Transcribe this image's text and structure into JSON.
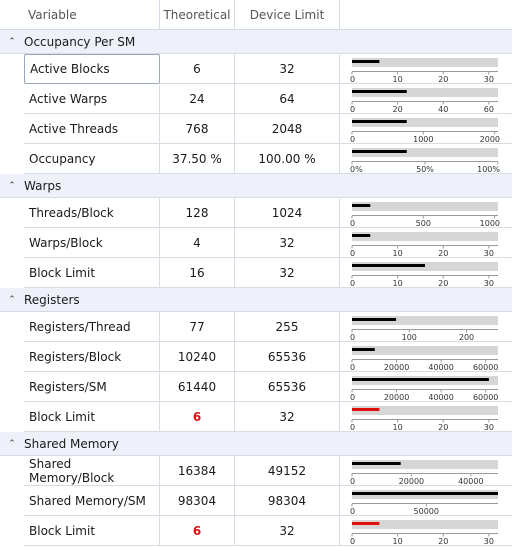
{
  "header": {
    "col_variable": "Variable",
    "col_theoretical": "Theoretical",
    "col_device_limit": "Device Limit"
  },
  "colors": {
    "bar_fill": "#000000",
    "bar_bg": "#d6d6d6",
    "bar_limit": "#e01010",
    "group_bg": "#eef1fa",
    "warn_text": "#e01010"
  },
  "groups": [
    {
      "title": "Occupancy Per SM",
      "rows": [
        {
          "label": "Active Blocks",
          "theoretical": "6",
          "limit": "32",
          "value": 6,
          "max": 32,
          "ticks": [
            "0",
            "10",
            "20",
            "30"
          ],
          "tick_values": [
            0,
            10,
            20,
            30
          ],
          "red": false
        },
        {
          "label": "Active Warps",
          "theoretical": "24",
          "limit": "64",
          "value": 24,
          "max": 64,
          "ticks": [
            "0",
            "20",
            "40",
            "60"
          ],
          "tick_values": [
            0,
            20,
            40,
            60
          ],
          "red": false
        },
        {
          "label": "Active Threads",
          "theoretical": "768",
          "limit": "2048",
          "value": 768,
          "max": 2048,
          "ticks": [
            "0",
            "1000",
            "2000"
          ],
          "tick_values": [
            0,
            1000,
            2000
          ],
          "red": false
        },
        {
          "label": "Occupancy",
          "theoretical": "37.50 %",
          "limit": "100.00 %",
          "value": 37.5,
          "max": 100,
          "ticks": [
            "0%",
            "50%",
            "100%"
          ],
          "tick_values": [
            0,
            50,
            100
          ],
          "red": false
        }
      ]
    },
    {
      "title": "Warps",
      "rows": [
        {
          "label": "Threads/Block",
          "theoretical": "128",
          "limit": "1024",
          "value": 128,
          "max": 1024,
          "ticks": [
            "0",
            "500",
            "1000"
          ],
          "tick_values": [
            0,
            500,
            1000
          ],
          "red": false
        },
        {
          "label": "Warps/Block",
          "theoretical": "4",
          "limit": "32",
          "value": 4,
          "max": 32,
          "ticks": [
            "0",
            "10",
            "20",
            "30"
          ],
          "tick_values": [
            0,
            10,
            20,
            30
          ],
          "red": false
        },
        {
          "label": "Block Limit",
          "theoretical": "16",
          "limit": "32",
          "value": 16,
          "max": 32,
          "ticks": [
            "0",
            "10",
            "20",
            "30"
          ],
          "tick_values": [
            0,
            10,
            20,
            30
          ],
          "red": false
        }
      ]
    },
    {
      "title": "Registers",
      "rows": [
        {
          "label": "Registers/Thread",
          "theoretical": "77",
          "limit": "255",
          "value": 77,
          "max": 255,
          "ticks": [
            "0",
            "100",
            "200"
          ],
          "tick_values": [
            0,
            100,
            200
          ],
          "red": false
        },
        {
          "label": "Registers/Block",
          "theoretical": "10240",
          "limit": "65536",
          "value": 10240,
          "max": 65536,
          "ticks": [
            "0",
            "20000",
            "40000",
            "60000"
          ],
          "tick_values": [
            0,
            20000,
            40000,
            60000
          ],
          "red": false
        },
        {
          "label": "Registers/SM",
          "theoretical": "61440",
          "limit": "65536",
          "value": 61440,
          "max": 65536,
          "ticks": [
            "0",
            "20000",
            "40000",
            "60000"
          ],
          "tick_values": [
            0,
            20000,
            40000,
            60000
          ],
          "red": false
        },
        {
          "label": "Block Limit",
          "theoretical": "6",
          "limit": "32",
          "value": 6,
          "max": 32,
          "ticks": [
            "0",
            "10",
            "20",
            "30"
          ],
          "tick_values": [
            0,
            10,
            20,
            30
          ],
          "red": true
        }
      ]
    },
    {
      "title": "Shared Memory",
      "rows": [
        {
          "label": "Shared Memory/Block",
          "theoretical": "16384",
          "limit": "49152",
          "value": 16384,
          "max": 49152,
          "ticks": [
            "0",
            "20000",
            "40000"
          ],
          "tick_values": [
            0,
            20000,
            40000
          ],
          "red": false
        },
        {
          "label": "Shared Memory/SM",
          "theoretical": "98304",
          "limit": "98304",
          "value": 98304,
          "max": 98304,
          "ticks": [
            "0",
            "50000"
          ],
          "tick_values": [
            0,
            50000
          ],
          "red": false
        },
        {
          "label": "Block Limit",
          "theoretical": "6",
          "limit": "32",
          "value": 6,
          "max": 32,
          "ticks": [
            "0",
            "10",
            "20",
            "30"
          ],
          "tick_values": [
            0,
            10,
            20,
            30
          ],
          "red": true
        }
      ]
    }
  ]
}
